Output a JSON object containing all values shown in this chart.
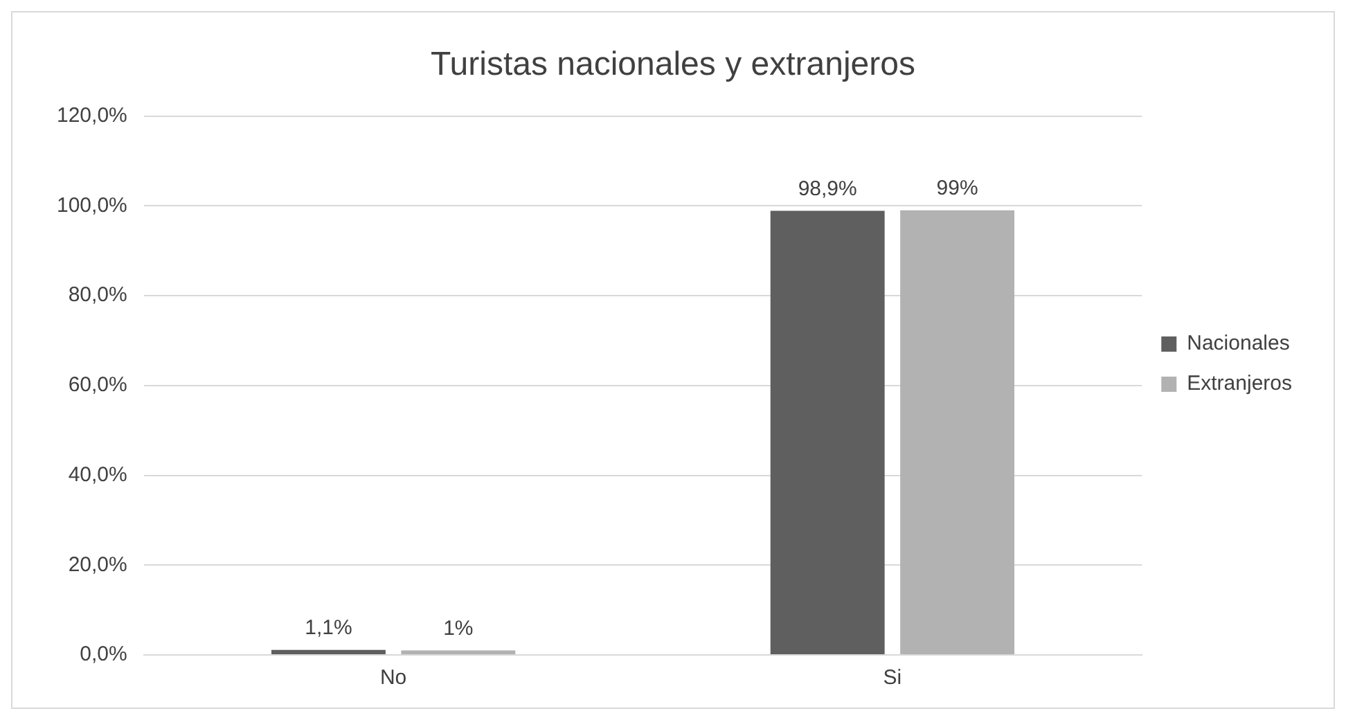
{
  "chart_data": {
    "type": "bar",
    "title": "Turistas nacionales y extranjeros",
    "categories": [
      "No",
      "Si"
    ],
    "series": [
      {
        "name": "Nacionales",
        "color": "#5f5f5f",
        "values": [
          1.1,
          98.9
        ],
        "value_labels": [
          "1,1%",
          "98,9%"
        ]
      },
      {
        "name": "Extranjeros",
        "color": "#b2b2b2",
        "values": [
          1,
          99
        ],
        "value_labels": [
          "1%",
          "99%"
        ]
      }
    ],
    "ylim": [
      0,
      120
    ],
    "yticks": [
      {
        "value": 0,
        "label": "0,0%"
      },
      {
        "value": 20,
        "label": "20,0%"
      },
      {
        "value": 40,
        "label": "40,0%"
      },
      {
        "value": 60,
        "label": "60,0%"
      },
      {
        "value": 80,
        "label": "80,0%"
      },
      {
        "value": 100,
        "label": "100,0%"
      },
      {
        "value": 120,
        "label": "120,0%"
      }
    ],
    "grid": "y",
    "legend": "right"
  }
}
